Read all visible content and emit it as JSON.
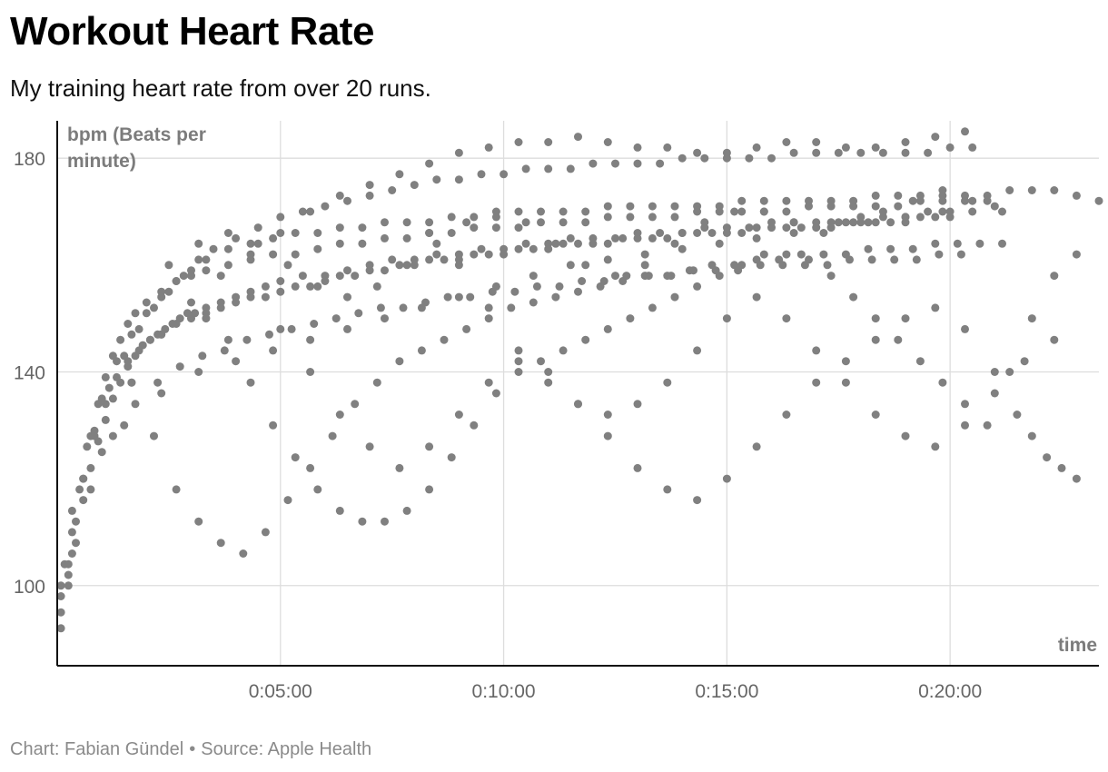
{
  "header": {
    "title": "Workout Heart Rate",
    "subtitle": "My training heart rate from over 20 runs."
  },
  "footer": {
    "credit": "Chart: Fabian Gündel",
    "separator": "•",
    "source": "Source: Apple Health"
  },
  "chart_data": {
    "type": "scatter",
    "title": "Workout Heart Rate",
    "subtitle": "My training heart rate from over 20 runs.",
    "ylabel_lines": [
      "bpm (Beats per",
      "minute)"
    ],
    "xlabel": "time",
    "x_units": "seconds elapsed",
    "xlim": [
      0,
      1400
    ],
    "ylim": [
      85,
      187
    ],
    "x_ticks": [
      {
        "value": 300,
        "label": "0:05:00"
      },
      {
        "value": 600,
        "label": "0:10:00"
      },
      {
        "value": 900,
        "label": "0:15:00"
      },
      {
        "value": 1200,
        "label": "0:20:00"
      }
    ],
    "y_ticks": [
      {
        "value": 100,
        "label": "100"
      },
      {
        "value": 140,
        "label": "140"
      },
      {
        "value": 180,
        "label": "180"
      }
    ],
    "grid": true,
    "legend": "none",
    "point_color": "#808080",
    "series": [
      {
        "x": [
          5,
          15,
          25,
          35,
          45,
          55,
          65,
          75,
          85,
          95,
          105,
          115,
          125,
          135,
          145,
          155,
          165,
          175,
          185,
          200,
          220,
          240,
          260,
          280,
          300,
          330,
          360,
          390,
          420,
          450,
          480,
          510,
          540,
          570,
          600,
          630,
          660,
          690,
          720,
          750,
          780,
          810,
          840,
          870,
          900,
          930,
          960,
          990,
          1020,
          1050,
          1080,
          1110,
          1140,
          1170,
          1200,
          1230,
          1260
        ],
        "y": [
          92,
          100,
          108,
          116,
          122,
          127,
          131,
          135,
          138,
          141,
          143,
          145,
          146,
          147,
          148,
          149,
          150,
          151,
          151,
          152,
          153,
          154,
          155,
          156,
          157,
          158,
          158,
          159,
          160,
          161,
          161,
          162,
          162,
          163,
          163,
          164,
          164,
          165,
          165,
          165,
          166,
          166,
          166,
          167,
          167,
          167,
          168,
          168,
          168,
          168,
          169,
          169,
          169,
          170,
          170,
          170,
          171
        ]
      },
      {
        "x": [
          5,
          15,
          25,
          35,
          45,
          55,
          65,
          75,
          85,
          95,
          105,
          120,
          140,
          160,
          180,
          200,
          230,
          260,
          290,
          320,
          350,
          380,
          410,
          440,
          470,
          500,
          530,
          560,
          590,
          620,
          650,
          680,
          710,
          740,
          770,
          800,
          830,
          860,
          890,
          920,
          950,
          980,
          1010,
          1040,
          1070,
          1100,
          1130,
          1160,
          1190,
          1220,
          1250
        ],
        "y": [
          95,
          104,
          112,
          120,
          128,
          134,
          139,
          143,
          146,
          149,
          151,
          153,
          155,
          157,
          158,
          159,
          160,
          161,
          162,
          162,
          163,
          164,
          164,
          165,
          165,
          166,
          166,
          167,
          167,
          167,
          168,
          168,
          168,
          169,
          169,
          169,
          169,
          170,
          170,
          170,
          170,
          170,
          171,
          171,
          171,
          171,
          171,
          172,
          172,
          172,
          172
        ]
      },
      {
        "x": [
          5,
          20,
          35,
          50,
          65,
          80,
          95,
          110,
          125,
          140,
          160,
          180,
          200,
          220,
          240,
          260,
          280,
          300,
          320,
          340,
          360,
          380,
          400,
          420,
          440,
          460,
          480,
          500,
          520,
          540,
          560,
          580,
          600,
          620,
          640,
          660,
          680,
          700,
          720,
          740,
          760,
          780,
          800,
          820,
          840,
          860,
          880,
          900,
          920,
          940,
          960,
          980,
          1000,
          1020,
          1040,
          1060,
          1080,
          1100,
          1120,
          1140,
          1160,
          1180,
          1200
        ],
        "y": [
          98,
          110,
          120,
          128,
          134,
          139,
          142,
          144,
          146,
          147,
          149,
          150,
          151,
          152,
          153,
          154,
          154,
          155,
          156,
          156,
          157,
          158,
          158,
          159,
          159,
          160,
          160,
          161,
          161,
          161,
          162,
          162,
          162,
          163,
          163,
          163,
          164,
          164,
          164,
          164,
          165,
          165,
          165,
          165,
          166,
          166,
          166,
          166,
          166,
          167,
          167,
          167,
          167,
          167,
          168,
          168,
          168,
          168,
          168,
          168,
          169,
          169,
          169
        ]
      },
      {
        "x": [
          5,
          20,
          40,
          60,
          80,
          100,
          120,
          140,
          160,
          180,
          200,
          230,
          260,
          290,
          320,
          350,
          380,
          410,
          440,
          470,
          500,
          530,
          560,
          590,
          620,
          650,
          680,
          710,
          740,
          770,
          800,
          830,
          860,
          890,
          920,
          950,
          980,
          1010,
          1040,
          1070,
          1100,
          1130,
          1160,
          1190,
          1220,
          1250,
          1280,
          1310,
          1340,
          1370,
          1400
        ],
        "y": [
          100,
          114,
          126,
          135,
          142,
          147,
          151,
          154,
          157,
          159,
          161,
          163,
          164,
          165,
          166,
          166,
          167,
          167,
          168,
          168,
          168,
          169,
          169,
          169,
          170,
          170,
          170,
          170,
          171,
          171,
          171,
          171,
          171,
          171,
          172,
          172,
          172,
          172,
          172,
          172,
          173,
          173,
          173,
          173,
          173,
          173,
          174,
          174,
          174,
          173,
          172
        ]
      },
      {
        "x": [
          10,
          30,
          50,
          70,
          90,
          110,
          130,
          150,
          170,
          190,
          210,
          240,
          270,
          300,
          330,
          360,
          390,
          420,
          450,
          480,
          510,
          540,
          570,
          600,
          630,
          660,
          690,
          720,
          750,
          780,
          810,
          840,
          870,
          900,
          930,
          960,
          990,
          1020,
          1050,
          1080,
          1110,
          1140,
          1170,
          1200,
          1230
        ],
        "y": [
          104,
          118,
          129,
          137,
          143,
          148,
          152,
          155,
          158,
          161,
          163,
          165,
          167,
          169,
          170,
          171,
          172,
          173,
          174,
          175,
          176,
          176,
          177,
          177,
          178,
          178,
          178,
          179,
          179,
          179,
          179,
          180,
          180,
          180,
          180,
          180,
          181,
          181,
          181,
          181,
          181,
          181,
          181,
          182,
          182
        ]
      },
      {
        "x": [
          20,
          60,
          100,
          140,
          180,
          220,
          260,
          300,
          340,
          380,
          420,
          460,
          500,
          540,
          580,
          620,
          660,
          700,
          740,
          780,
          820,
          860,
          900,
          940,
          980,
          1020,
          1060,
          1100,
          1140,
          1180,
          1220
        ],
        "y": [
          106,
          125,
          138,
          147,
          153,
          158,
          162,
          166,
          170,
          173,
          175,
          177,
          179,
          181,
          182,
          183,
          183,
          184,
          183,
          182,
          182,
          181,
          181,
          182,
          183,
          183,
          182,
          182,
          183,
          184,
          185
        ]
      },
      {
        "x": [
          15,
          45,
          75,
          105,
          135,
          165,
          195,
          225,
          255,
          285,
          315,
          345,
          375,
          405,
          435,
          465,
          495,
          525,
          555,
          585,
          615,
          645,
          675,
          705,
          735,
          765,
          795,
          825,
          855,
          885,
          915,
          945,
          975,
          1005,
          1035,
          1065,
          1095,
          1125,
          1155,
          1185,
          1215
        ],
        "y": [
          102,
          118,
          128,
          134,
          138,
          141,
          143,
          144,
          146,
          147,
          148,
          149,
          150,
          151,
          152,
          152,
          153,
          154,
          154,
          155,
          155,
          156,
          156,
          157,
          157,
          158,
          158,
          158,
          159,
          159,
          159,
          160,
          160,
          160,
          160,
          161,
          161,
          161,
          161,
          162,
          162
        ]
      },
      {
        "x": [
          100,
          130,
          160,
          190,
          220,
          250,
          280,
          310,
          340,
          370,
          400,
          430,
          460,
          490,
          520,
          550,
          580,
          610,
          640,
          670,
          700,
          730,
          760,
          790,
          820,
          850,
          880,
          910,
          940,
          970,
          1000,
          1030,
          1060,
          1090,
          1120,
          1150,
          1180,
          1210,
          1240,
          1270
        ],
        "y": [
          138,
          128,
          118,
          112,
          108,
          106,
          110,
          116,
          122,
          128,
          134,
          138,
          142,
          144,
          146,
          148,
          150,
          152,
          153,
          154,
          155,
          156,
          157,
          158,
          158,
          159,
          160,
          160,
          161,
          161,
          162,
          162,
          162,
          163,
          163,
          163,
          164,
          164,
          164,
          164
        ]
      },
      {
        "x": [
          200,
          230,
          260,
          290,
          320,
          350,
          380,
          410,
          440,
          470,
          500,
          530,
          560,
          590,
          620,
          650,
          680,
          710,
          740,
          770,
          800,
          830,
          860,
          890,
          920,
          950,
          980,
          1010,
          1040,
          1070,
          1100,
          1130,
          1160,
          1190,
          1220,
          1250,
          1280,
          1310,
          1340,
          1370
        ],
        "y": [
          150,
          146,
          138,
          130,
          124,
          118,
          114,
          112,
          112,
          114,
          118,
          124,
          130,
          136,
          140,
          142,
          144,
          146,
          148,
          150,
          152,
          154,
          156,
          158,
          160,
          162,
          162,
          161,
          158,
          154,
          150,
          146,
          142,
          138,
          134,
          130,
          140,
          150,
          158,
          162
        ]
      },
      {
        "x": [
          300,
          340,
          380,
          420,
          460,
          500,
          540,
          580,
          620,
          660,
          700,
          740,
          780,
          820,
          860,
          900,
          940,
          980,
          1020,
          1060,
          1100,
          1140,
          1180,
          1220,
          1260,
          1290,
          1310,
          1330,
          1350,
          1370
        ],
        "y": [
          148,
          140,
          132,
          126,
          122,
          126,
          132,
          138,
          142,
          140,
          134,
          128,
          122,
          118,
          116,
          120,
          126,
          132,
          138,
          142,
          146,
          150,
          152,
          148,
          140,
          132,
          128,
          124,
          122,
          120
        ]
      },
      {
        "x": [
          500,
          540,
          580,
          620,
          660,
          700,
          740,
          780,
          820,
          860,
          900,
          940,
          980,
          1020,
          1060,
          1100,
          1140,
          1180,
          1220,
          1260,
          1300,
          1340
        ],
        "y": [
          166,
          160,
          152,
          144,
          138,
          134,
          132,
          134,
          138,
          144,
          150,
          154,
          150,
          144,
          138,
          132,
          128,
          126,
          130,
          136,
          142,
          146
        ]
      },
      {
        "x": [
          150,
          190,
          230,
          270,
          310,
          350,
          390,
          430,
          470,
          510,
          550,
          590,
          630,
          670,
          710,
          750,
          790,
          830,
          870,
          910,
          950,
          990,
          1030,
          1070,
          1110,
          1150,
          1190,
          1230,
          1270
        ],
        "y": [
          160,
          164,
          166,
          164,
          160,
          156,
          154,
          156,
          160,
          164,
          168,
          170,
          168,
          164,
          160,
          158,
          160,
          164,
          168,
          170,
          170,
          168,
          166,
          168,
          170,
          172,
          174,
          172,
          170
        ]
      },
      {
        "x": [
          90,
          140,
          190,
          240,
          290,
          340,
          390,
          440,
          490,
          540,
          590,
          640,
          690,
          740,
          790,
          840,
          890,
          940,
          990,
          1040,
          1090,
          1140,
          1190
        ],
        "y": [
          130,
          136,
          140,
          142,
          144,
          146,
          148,
          150,
          152,
          154,
          156,
          158,
          160,
          161,
          162,
          163,
          164,
          165,
          166,
          167,
          168,
          169,
          170
        ]
      }
    ]
  }
}
